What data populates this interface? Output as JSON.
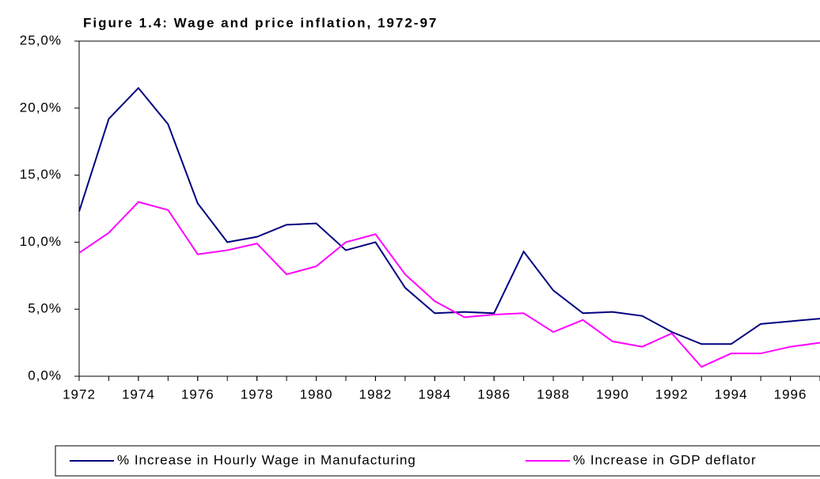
{
  "chart_data": {
    "type": "line",
    "title": "Figure 1.4: Wage and price inflation, 1972-97",
    "x": [
      1972,
      1973,
      1974,
      1975,
      1976,
      1977,
      1978,
      1979,
      1980,
      1981,
      1982,
      1983,
      1984,
      1985,
      1986,
      1987,
      1988,
      1989,
      1990,
      1991,
      1992,
      1993,
      1994,
      1995,
      1996,
      1997
    ],
    "series": [
      {
        "name": "% Increase in Hourly Wage in Manufacturing",
        "color": "#000080",
        "values": [
          12.3,
          19.2,
          21.5,
          18.8,
          12.9,
          10.0,
          10.4,
          11.3,
          11.4,
          9.4,
          10.0,
          6.6,
          4.7,
          4.8,
          4.7,
          9.3,
          6.4,
          4.7,
          4.8,
          4.5,
          3.3,
          2.4,
          2.4,
          3.9,
          4.1,
          4.3
        ]
      },
      {
        "name": "% Increase in GDP deflator",
        "color": "#ff00ff",
        "values": [
          9.2,
          10.7,
          13.0,
          12.4,
          9.1,
          9.4,
          9.9,
          7.6,
          8.2,
          10.0,
          10.6,
          7.6,
          5.6,
          4.4,
          4.6,
          4.7,
          3.3,
          4.2,
          2.6,
          2.2,
          3.2,
          0.7,
          1.7,
          1.7,
          2.2,
          2.5
        ]
      }
    ],
    "xlim": [
      1972,
      1997
    ],
    "xticks": [
      1972,
      1974,
      1976,
      1978,
      1980,
      1982,
      1984,
      1986,
      1988,
      1990,
      1992,
      1994,
      1996
    ],
    "ylim": [
      0,
      25
    ],
    "yticks": [
      {
        "value": 0,
        "label": "0,0%"
      },
      {
        "value": 5,
        "label": "5,0%"
      },
      {
        "value": 10,
        "label": "10,0%"
      },
      {
        "value": 15,
        "label": "15,0%"
      },
      {
        "value": 20,
        "label": "20,0%"
      },
      {
        "value": 25,
        "label": "25,0%"
      }
    ],
    "grid": false
  }
}
